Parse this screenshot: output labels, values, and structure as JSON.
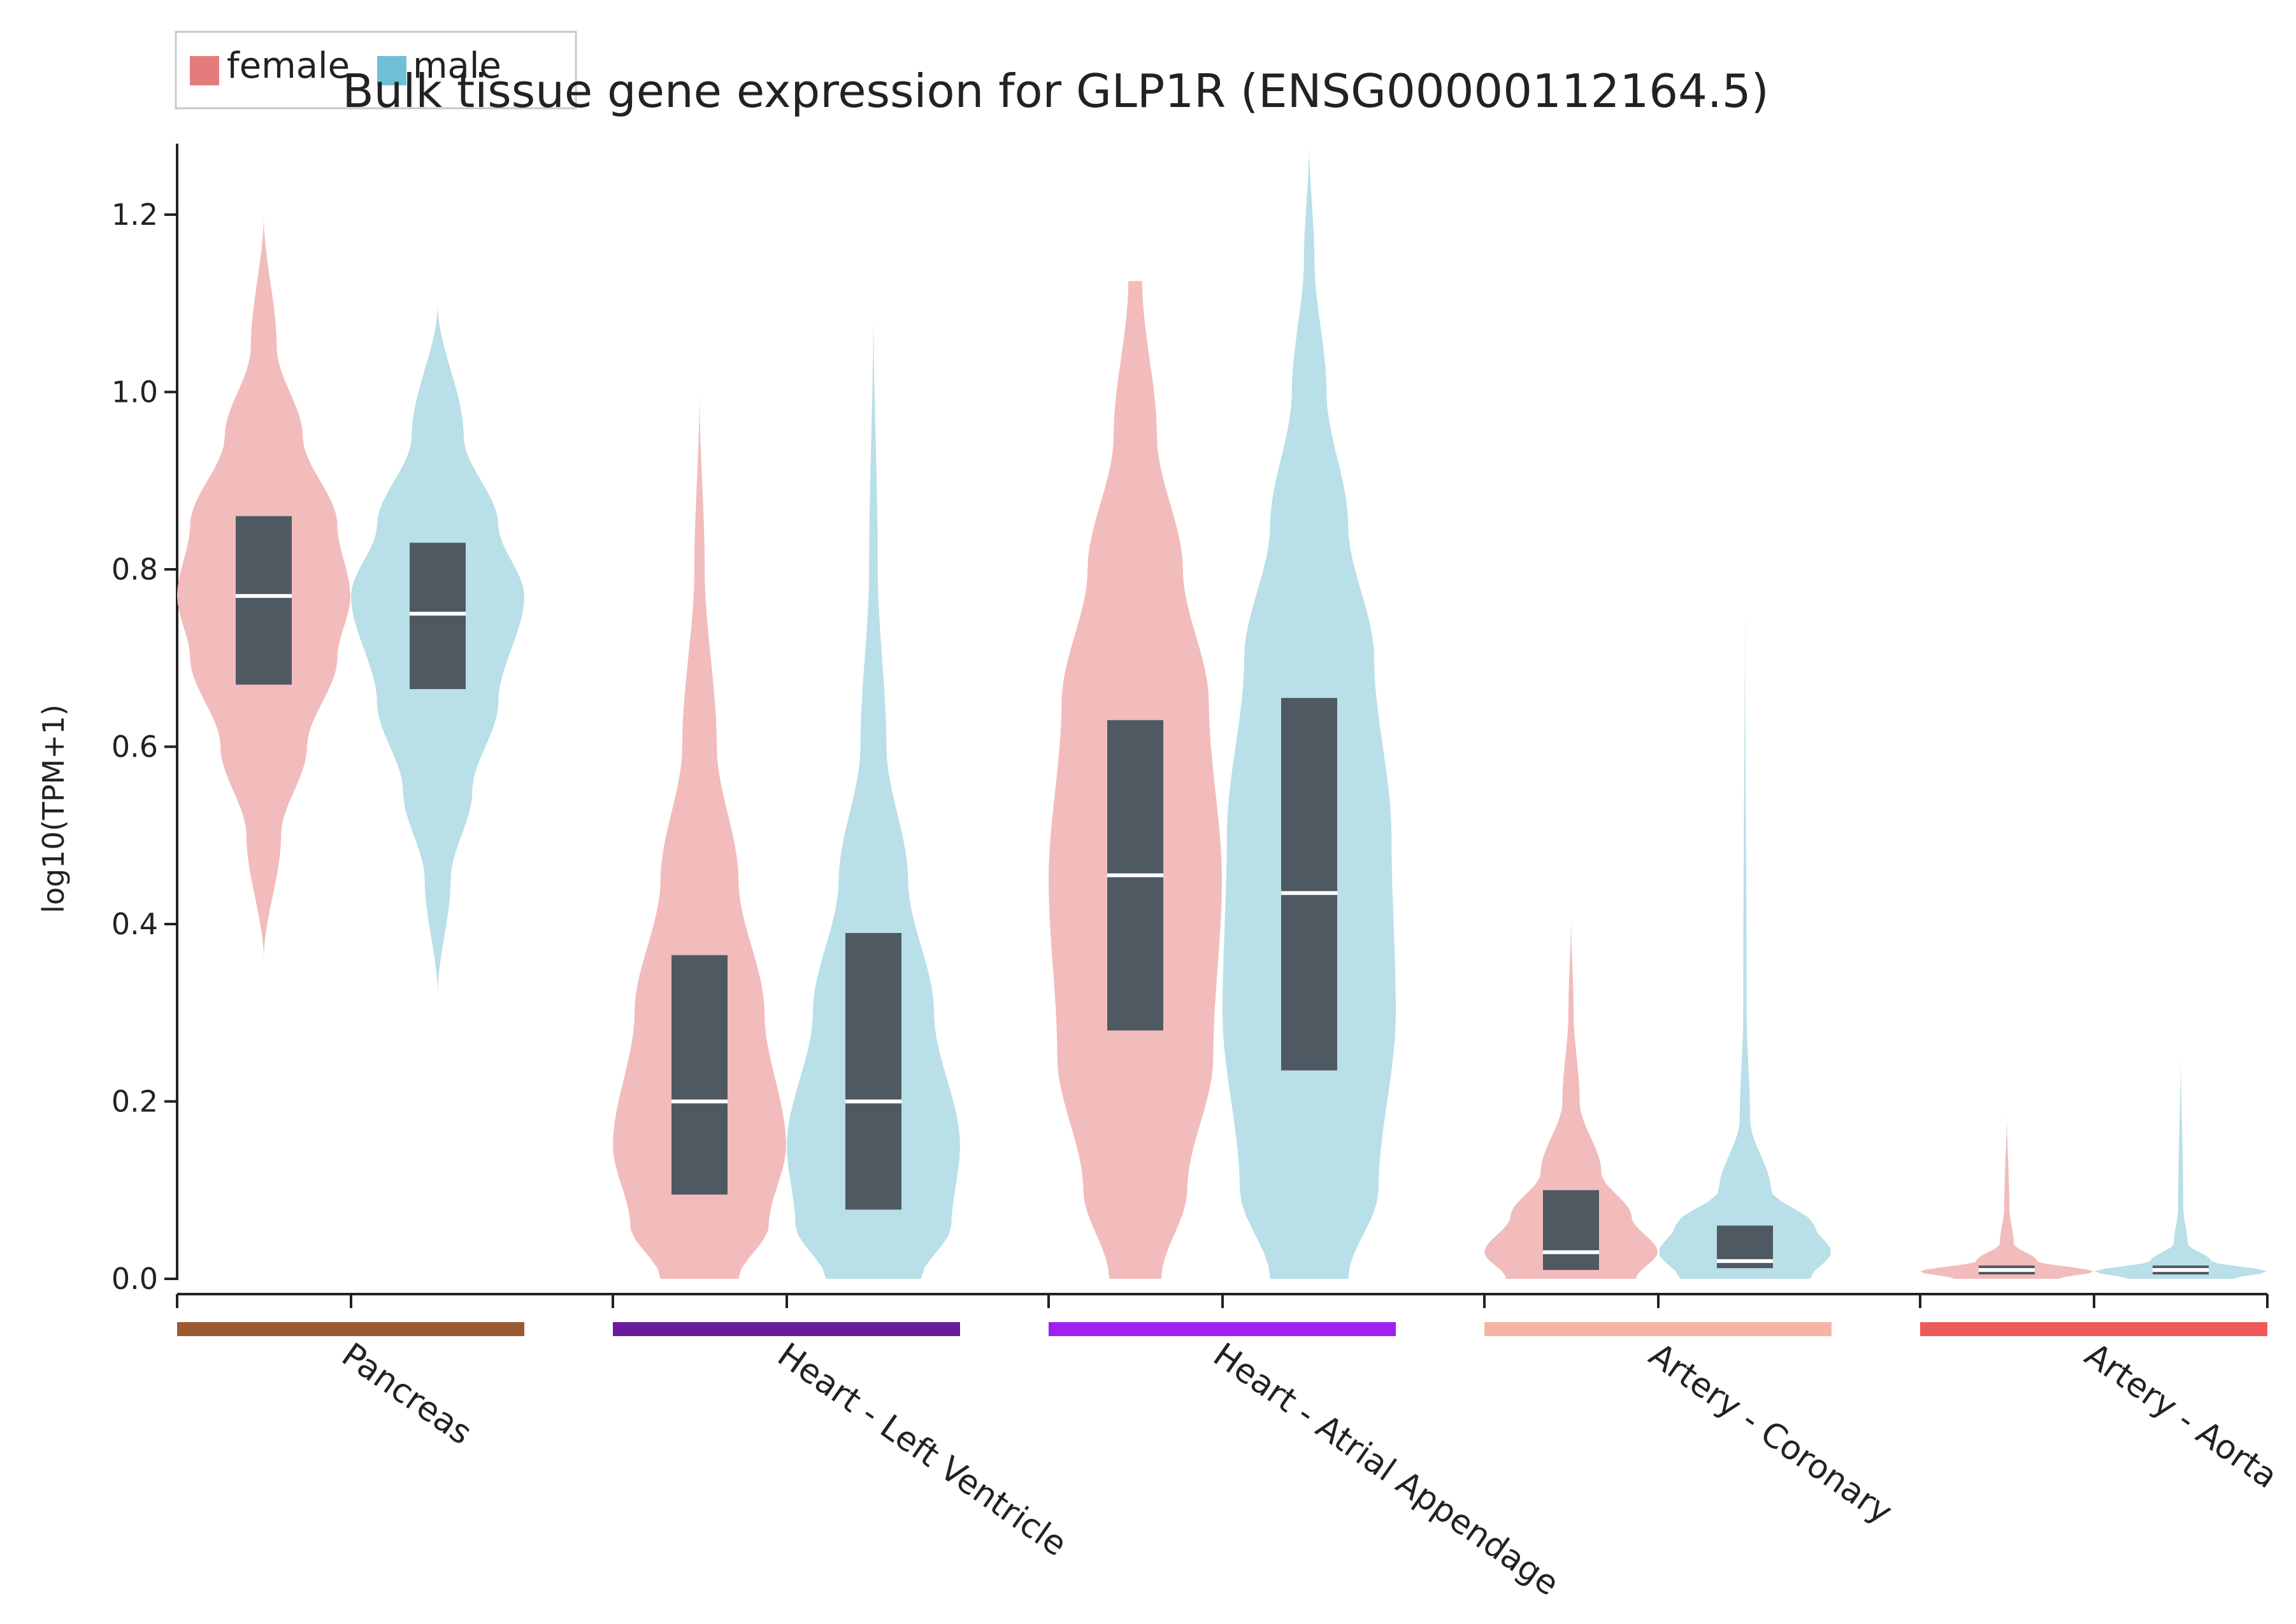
{
  "chart_data": {
    "type": "violin",
    "title": "Bulk tissue gene expression for GLP1R (ENSG00000112164.5)",
    "xlabel": "",
    "ylabel": "log10(TPM+1)",
    "ylim": [
      0,
      1.28
    ],
    "yticks": [
      0.0,
      0.2,
      0.4,
      0.6,
      0.8,
      1.0,
      1.2
    ],
    "ytick_labels": [
      "0.0",
      "0.2",
      "0.4",
      "0.6",
      "0.8",
      "1.0",
      "1.2"
    ],
    "legend": {
      "placement": "top-left",
      "entries": [
        {
          "label": "female",
          "color": "#e57c7c"
        },
        {
          "label": "male",
          "color": "#6fbfd6"
        }
      ]
    },
    "series_colors": {
      "female_fill": "#f2bcbc",
      "male_fill": "#b9dfe8",
      "box": "#4f5962",
      "median": "#ffffff"
    },
    "categories": [
      {
        "name": "Pancreas",
        "color": "#9c5a33",
        "female": {
          "min": 0.36,
          "max": 1.2,
          "q1": 0.67,
          "median": 0.77,
          "q3": 0.86,
          "profile": [
            [
              0.36,
              0.0
            ],
            [
              0.5,
              0.2
            ],
            [
              0.6,
              0.5
            ],
            [
              0.7,
              0.85
            ],
            [
              0.77,
              1.0
            ],
            [
              0.85,
              0.85
            ],
            [
              0.95,
              0.45
            ],
            [
              1.05,
              0.15
            ],
            [
              1.2,
              0.0
            ]
          ]
        },
        "male": {
          "min": 0.32,
          "max": 1.1,
          "q1": 0.665,
          "median": 0.75,
          "q3": 0.83,
          "profile": [
            [
              0.32,
              0.0
            ],
            [
              0.45,
              0.15
            ],
            [
              0.55,
              0.4
            ],
            [
              0.65,
              0.7
            ],
            [
              0.77,
              1.0
            ],
            [
              0.85,
              0.7
            ],
            [
              0.95,
              0.3
            ],
            [
              1.1,
              0.0
            ]
          ]
        }
      },
      {
        "name": "Heart - Left Ventricle",
        "color": "#6a1b9a",
        "female": {
          "min": 0.0,
          "max": 1.0,
          "q1": 0.095,
          "median": 0.2,
          "q3": 0.365,
          "profile": [
            [
              0.0,
              0.45
            ],
            [
              0.06,
              0.8
            ],
            [
              0.15,
              1.0
            ],
            [
              0.3,
              0.75
            ],
            [
              0.45,
              0.45
            ],
            [
              0.6,
              0.2
            ],
            [
              0.8,
              0.06
            ],
            [
              1.0,
              0.0
            ]
          ]
        },
        "male": {
          "min": 0.0,
          "max": 1.1,
          "q1": 0.078,
          "median": 0.2,
          "q3": 0.39,
          "profile": [
            [
              0.0,
              0.55
            ],
            [
              0.06,
              0.9
            ],
            [
              0.15,
              1.0
            ],
            [
              0.3,
              0.7
            ],
            [
              0.45,
              0.4
            ],
            [
              0.6,
              0.15
            ],
            [
              0.8,
              0.05
            ],
            [
              1.1,
              0.0
            ]
          ]
        }
      },
      {
        "name": "Heart - Atrial Appendage",
        "color": "#a020f0",
        "female": {
          "min": 0.0,
          "max": 1.125,
          "q1": 0.28,
          "median": 0.455,
          "q3": 0.63,
          "profile": [
            [
              0.0,
              0.3
            ],
            [
              0.1,
              0.6
            ],
            [
              0.25,
              0.9
            ],
            [
              0.45,
              1.0
            ],
            [
              0.65,
              0.85
            ],
            [
              0.8,
              0.55
            ],
            [
              0.95,
              0.25
            ],
            [
              1.125,
              0.08
            ]
          ]
        },
        "male": {
          "min": 0.0,
          "max": 1.28,
          "q1": 0.235,
          "median": 0.435,
          "q3": 0.655,
          "profile": [
            [
              0.0,
              0.45
            ],
            [
              0.1,
              0.8
            ],
            [
              0.3,
              1.0
            ],
            [
              0.5,
              0.95
            ],
            [
              0.7,
              0.75
            ],
            [
              0.85,
              0.45
            ],
            [
              1.0,
              0.2
            ],
            [
              1.15,
              0.06
            ],
            [
              1.28,
              0.0
            ]
          ]
        }
      },
      {
        "name": "Artery - Coronary",
        "color": "#f7b3a6",
        "female": {
          "min": 0.0,
          "max": 0.41,
          "q1": 0.01,
          "median": 0.03,
          "q3": 0.1,
          "profile": [
            [
              0.0,
              0.75
            ],
            [
              0.03,
              1.0
            ],
            [
              0.07,
              0.7
            ],
            [
              0.12,
              0.35
            ],
            [
              0.2,
              0.1
            ],
            [
              0.3,
              0.03
            ],
            [
              0.41,
              0.0
            ]
          ]
        },
        "male": {
          "min": 0.0,
          "max": 0.78,
          "q1": 0.012,
          "median": 0.02,
          "q3": 0.06,
          "profile": [
            [
              0.0,
              0.75
            ],
            [
              0.03,
              1.0
            ],
            [
              0.06,
              0.8
            ],
            [
              0.1,
              0.3
            ],
            [
              0.18,
              0.06
            ],
            [
              0.3,
              0.02
            ],
            [
              0.78,
              0.0
            ]
          ]
        }
      },
      {
        "name": "Artery - Aorta",
        "color": "#ee5a5a",
        "female": {
          "min": 0.0,
          "max": 0.19,
          "q1": 0.005,
          "median": 0.01,
          "q3": 0.015,
          "profile": [
            [
              0.0,
              0.6
            ],
            [
              0.008,
              1.0
            ],
            [
              0.02,
              0.35
            ],
            [
              0.04,
              0.08
            ],
            [
              0.08,
              0.03
            ],
            [
              0.19,
              0.0
            ]
          ]
        },
        "male": {
          "min": 0.0,
          "max": 0.26,
          "q1": 0.005,
          "median": 0.01,
          "q3": 0.015,
          "profile": [
            [
              0.0,
              0.6
            ],
            [
              0.008,
              1.0
            ],
            [
              0.02,
              0.35
            ],
            [
              0.04,
              0.08
            ],
            [
              0.08,
              0.03
            ],
            [
              0.26,
              0.0
            ]
          ]
        }
      }
    ]
  }
}
